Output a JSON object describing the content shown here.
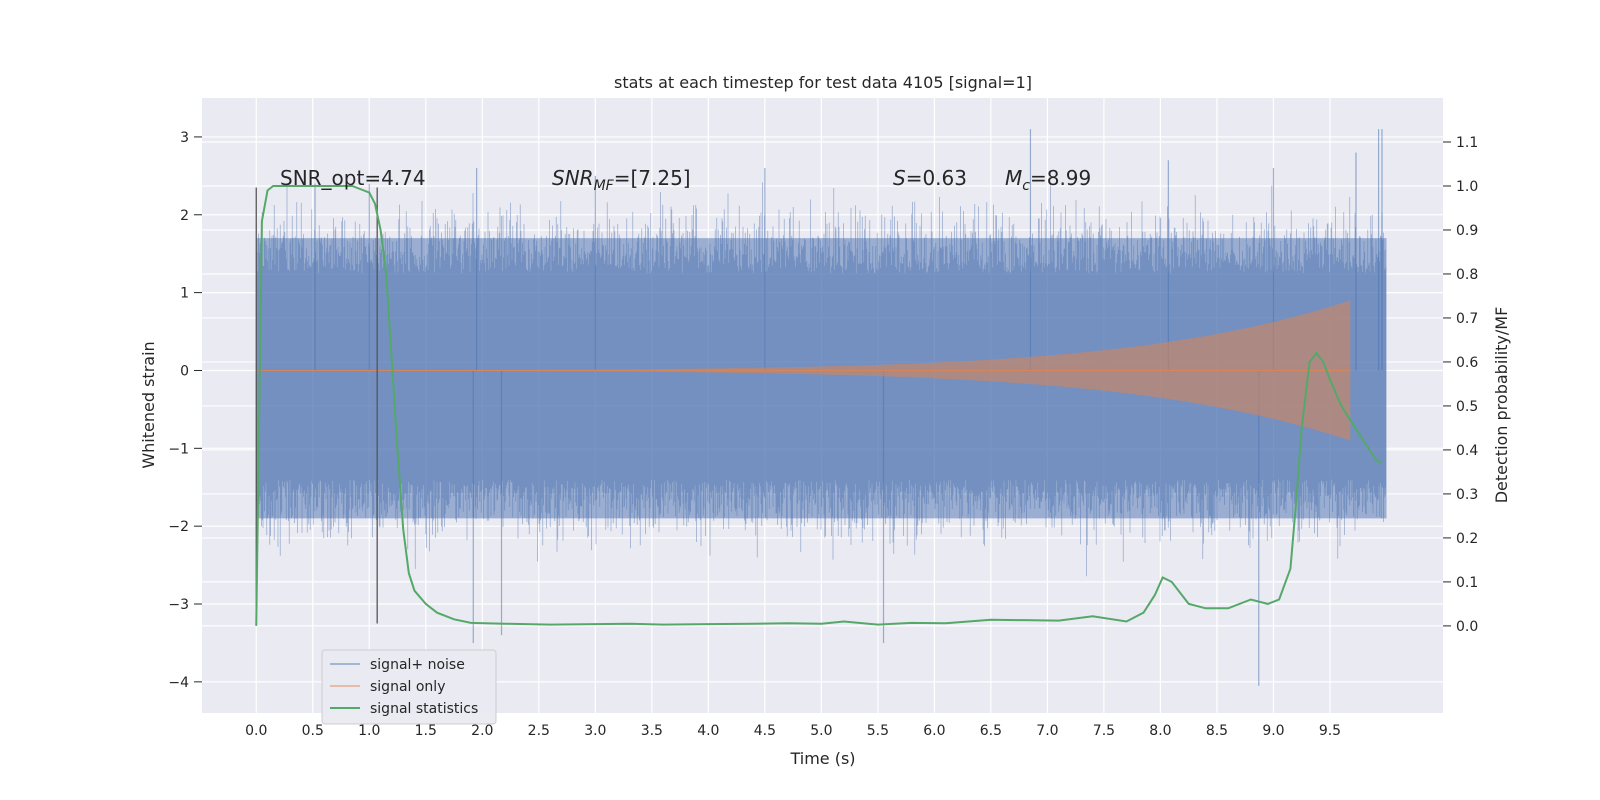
{
  "chart_data": {
    "type": "line",
    "title": "stats at each timestep for test data 4105 [signal=1]",
    "xlabel": "Time (s)",
    "ylabel": "Whitened strain",
    "ylabel_right": "Detection probability/MF",
    "xlim": [
      -0.48,
      10.5
    ],
    "ylim": [
      -4.4,
      3.5
    ],
    "ylim_right": [
      -0.198,
      1.2
    ],
    "x_ticks": [
      0.0,
      0.5,
      1.0,
      1.5,
      2.0,
      2.5,
      3.0,
      3.5,
      4.0,
      4.5,
      5.0,
      5.5,
      6.0,
      6.5,
      7.0,
      7.5,
      8.0,
      8.5,
      9.0,
      9.5
    ],
    "x_tick_labels": [
      "0.0",
      "0.5",
      "1.0",
      "1.5",
      "2.0",
      "2.5",
      "3.0",
      "3.5",
      "4.0",
      "4.5",
      "5.0",
      "5.5",
      "6.0",
      "6.5",
      "7.0",
      "7.5",
      "8.0",
      "8.5",
      "9.0",
      "9.5"
    ],
    "y_ticks": [
      3,
      2,
      1,
      0,
      -1,
      -2,
      -3,
      -4
    ],
    "y_tick_labels": [
      "3",
      "2",
      "1",
      "0",
      "−1",
      "−2",
      "−3",
      "−4"
    ],
    "y_right_ticks": [
      1.1,
      1.0,
      0.9,
      0.8,
      0.7,
      0.6,
      0.5,
      0.4,
      0.3,
      0.2,
      0.1,
      0.0
    ],
    "y_right_tick_labels": [
      "1.1",
      "1.0",
      "0.9",
      "0.8",
      "0.7",
      "0.6",
      "0.5",
      "0.4",
      "0.3",
      "0.2",
      "0.1",
      "0.0"
    ],
    "grid": true,
    "legend_position": "lower-left",
    "annotations": {
      "snr_opt": "SNR_opt=4.74",
      "snr_mf_sym": "SNR",
      "snr_mf_sub": "MF",
      "snr_mf_val": "=[7.25]",
      "s_sym": "S",
      "s_val": "=0.63",
      "mc_sym": "M",
      "mc_sub": "c",
      "mc_val": "=8.99"
    },
    "vertical_lines": [
      0.0,
      1.07
    ],
    "series": [
      {
        "name": "signal+ noise",
        "color": "#4c72b0",
        "x_range": [
          0.0,
          10.0
        ],
        "envelope_low": -1.9,
        "envelope_high": 1.7,
        "peaks": [
          [
            0.52,
            2.4
          ],
          [
            1.0,
            2.4
          ],
          [
            1.95,
            2.6
          ],
          [
            1.92,
            -3.5
          ],
          [
            2.17,
            -3.4
          ],
          [
            3.0,
            2.5
          ],
          [
            4.5,
            2.6
          ],
          [
            5.55,
            -3.5
          ],
          [
            6.85,
            3.1
          ],
          [
            8.07,
            2.7
          ],
          [
            8.87,
            -4.05
          ],
          [
            9.0,
            2.6
          ],
          [
            9.73,
            2.8
          ],
          [
            9.93,
            3.1
          ],
          [
            9.96,
            3.1
          ]
        ]
      },
      {
        "name": "signal only",
        "color": "#dd8452",
        "x_range": [
          0.0,
          9.68
        ],
        "amplitude_start": 0.005,
        "amplitude_end": 0.65,
        "end_x": 9.68
      },
      {
        "name": "signal statistics",
        "color": "#55a868",
        "axis": "right",
        "x": [
          0.0,
          0.05,
          0.1,
          0.15,
          0.2,
          0.3,
          0.5,
          0.7,
          0.85,
          0.95,
          1.0,
          1.05,
          1.1,
          1.15,
          1.2,
          1.25,
          1.3,
          1.35,
          1.4,
          1.5,
          1.6,
          1.75,
          1.9,
          2.2,
          2.6,
          3.0,
          3.3,
          3.6,
          4.0,
          4.4,
          4.7,
          5.0,
          5.2,
          5.5,
          5.8,
          6.1,
          6.5,
          6.8,
          7.1,
          7.4,
          7.7,
          7.85,
          7.95,
          8.02,
          8.1,
          8.25,
          8.4,
          8.6,
          8.8,
          8.95,
          9.05,
          9.15,
          9.2,
          9.25,
          9.32,
          9.38,
          9.44,
          9.5,
          9.6,
          9.7,
          9.8,
          9.9,
          9.95
        ],
        "values": [
          0.0,
          0.92,
          0.99,
          1.0,
          1.0,
          1.0,
          1.0,
          1.0,
          1.0,
          0.99,
          0.985,
          0.96,
          0.9,
          0.8,
          0.6,
          0.4,
          0.22,
          0.12,
          0.08,
          0.05,
          0.03,
          0.015,
          0.007,
          0.005,
          0.003,
          0.004,
          0.005,
          0.003,
          0.004,
          0.005,
          0.006,
          0.005,
          0.01,
          0.003,
          0.007,
          0.006,
          0.014,
          0.013,
          0.012,
          0.022,
          0.01,
          0.03,
          0.07,
          0.11,
          0.1,
          0.05,
          0.04,
          0.04,
          0.06,
          0.05,
          0.06,
          0.13,
          0.28,
          0.45,
          0.6,
          0.62,
          0.6,
          0.56,
          0.5,
          0.46,
          0.42,
          0.38,
          0.37
        ]
      }
    ]
  }
}
